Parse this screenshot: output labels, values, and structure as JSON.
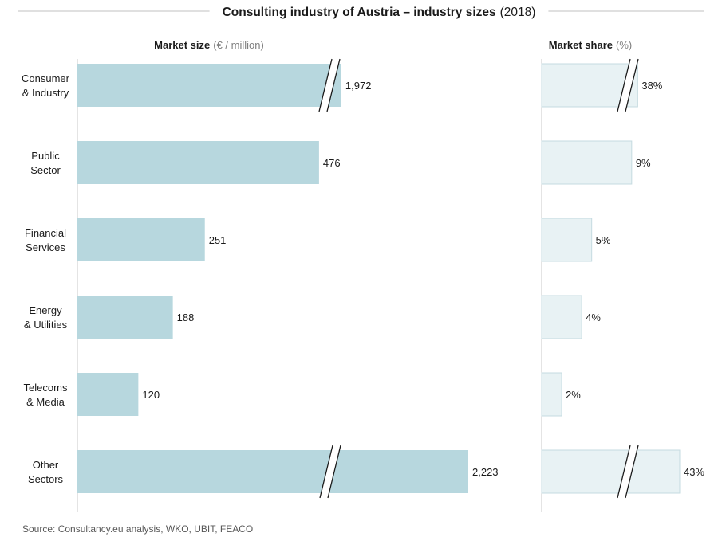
{
  "chart_data": {
    "type": "bar",
    "title": "Consulting industry of Austria – industry sizes",
    "title_year": "(2018)",
    "categories": [
      [
        "Consumer",
        "& Industry"
      ],
      [
        "Public",
        "Sector"
      ],
      [
        "Financial",
        "Services"
      ],
      [
        "Energy",
        "& Utilities"
      ],
      [
        "Telecoms",
        "& Media"
      ],
      [
        "Other",
        "Sectors"
      ]
    ],
    "series": [
      {
        "name": "Market size",
        "unit": "(€ / million)",
        "values": [
          1972,
          476,
          251,
          188,
          120,
          2223
        ],
        "labels": [
          "1,972",
          "476",
          "251",
          "188",
          "120",
          "2,223"
        ],
        "axis_break": [
          true,
          false,
          false,
          false,
          false,
          true
        ],
        "display_values": [
          520,
          476,
          251,
          188,
          120,
          770
        ],
        "color": "#b7d7de"
      },
      {
        "name": "Market share",
        "unit": "(%)",
        "values": [
          38,
          9,
          5,
          4,
          2,
          43
        ],
        "labels": [
          "38%",
          "9%",
          "5%",
          "4%",
          "2%",
          "43%"
        ],
        "axis_break": [
          true,
          false,
          false,
          false,
          false,
          true
        ],
        "display_values": [
          9.6,
          9,
          5,
          4,
          2,
          13.8
        ],
        "color": "#e8f2f4"
      }
    ],
    "source": "Source: Consultancy.eu analysis, WKO, UBIT, FEACO",
    "colors": {
      "bar_primary": "#b7d7de",
      "bar_secondary": "#e8f2f4",
      "bar_secondary_border": "#c5dbe0",
      "axis": "#c9c9c9",
      "title_rule": "#c0c0c0",
      "break_marks": "#1a1a1a",
      "muted_text": "#7f7f7f",
      "source_text": "#595959"
    }
  }
}
